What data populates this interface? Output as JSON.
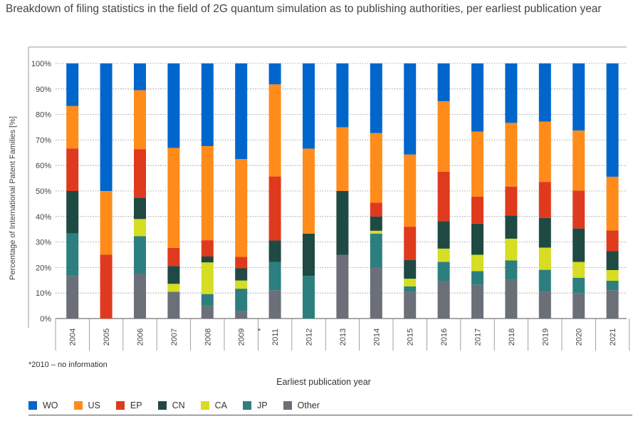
{
  "title": "Breakdown of filing statistics in the field of 2G quantum simulation as to publishing authorities, per earliest publication year",
  "footnote": "*2010 – no information",
  "gap_marker": "*",
  "colors": {
    "WO": "#0066cc",
    "US": "#ff8c1a",
    "EP": "#e03a1e",
    "CN": "#1f4a44",
    "CA": "#d6dd22",
    "JP": "#2d7f7f",
    "Other": "#6b6f78"
  },
  "chart_data": {
    "type": "bar",
    "stacked": true,
    "title": "Breakdown of filing statistics in the field of 2G quantum simulation as to publishing authorities, per earliest publication year",
    "xlabel": "Earliest publication year",
    "ylabel": "Percentage of International Patent Families [%]",
    "ylim": [
      0,
      100
    ],
    "yticks": [
      "0%",
      "10%",
      "20%",
      "30%",
      "40%",
      "50%",
      "60%",
      "70%",
      "80%",
      "90%",
      "100%"
    ],
    "legend_position": "bottom",
    "categories": [
      "2004",
      "2005",
      "2006",
      "2007",
      "2008",
      "2009",
      "2011",
      "2012",
      "2013",
      "2014",
      "2015",
      "2016",
      "2017",
      "2018",
      "2019",
      "2020",
      "2021"
    ],
    "series": [
      {
        "name": "Other",
        "values": [
          16.7,
          0,
          17.6,
          10.5,
          5,
          2.9,
          11.1,
          0,
          25,
          20,
          10.5,
          14.8,
          13.3,
          15.2,
          10.6,
          10,
          11.1
        ]
      },
      {
        "name": "JP",
        "values": [
          16.7,
          0,
          14.7,
          0,
          4.6,
          8.8,
          11.1,
          16.7,
          0,
          13.3,
          2.1,
          7.4,
          5.3,
          7.6,
          8.5,
          6,
          3.7
        ]
      },
      {
        "name": "CA",
        "values": [
          0,
          0,
          6.7,
          3.1,
          12.4,
          3.2,
          0,
          0,
          0,
          1.1,
          3,
          5.2,
          6.4,
          8.5,
          8.7,
          6.2,
          4.2
        ]
      },
      {
        "name": "CN",
        "values": [
          16.6,
          0,
          8.4,
          7,
          2.3,
          4.8,
          8.4,
          16.6,
          25,
          5.6,
          7.3,
          10.8,
          12.2,
          9.1,
          11.6,
          13.1,
          7.4
        ]
      },
      {
        "name": "EP",
        "values": [
          16.7,
          25,
          19,
          7.1,
          6.4,
          4.5,
          25.1,
          0,
          0,
          5.4,
          13.1,
          19.4,
          10.6,
          11.3,
          14.1,
          14.9,
          8.1
        ]
      },
      {
        "name": "US",
        "values": [
          16.6,
          25,
          23.1,
          39.2,
          36.9,
          38.3,
          36.1,
          33.3,
          25,
          27.3,
          28.3,
          27.6,
          25.5,
          25,
          23.7,
          23.5,
          21.1
        ]
      },
      {
        "name": "WO",
        "values": [
          16.7,
          50,
          10.5,
          33.1,
          32.4,
          37.5,
          8.2,
          33.4,
          25,
          27.3,
          35.7,
          14.8,
          26.7,
          23.3,
          22.8,
          26.3,
          44.4
        ]
      }
    ],
    "legend": [
      "WO",
      "US",
      "EP",
      "CN",
      "CA",
      "JP",
      "Other"
    ]
  }
}
